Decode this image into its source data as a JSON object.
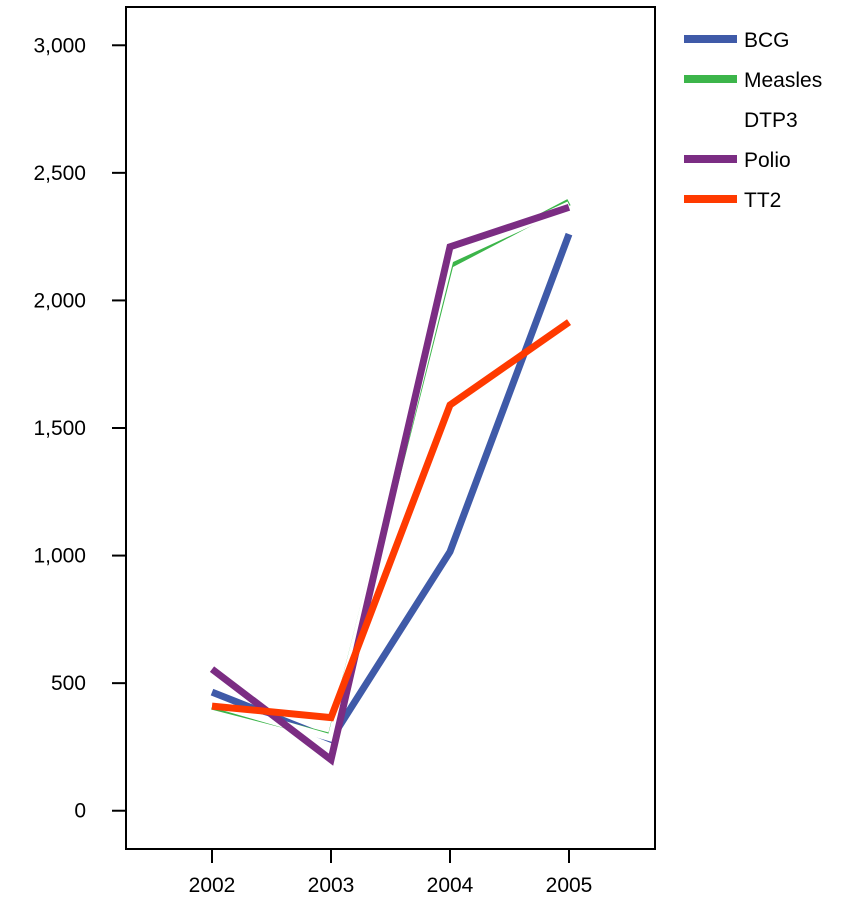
{
  "chart_data": {
    "type": "line",
    "title": "",
    "xlabel": "",
    "ylabel": "",
    "x": [
      "2002",
      "2003",
      "2004",
      "2005"
    ],
    "ylim": [
      -150,
      3150
    ],
    "y_ticks": [
      0,
      500,
      1000,
      1500,
      2000,
      2500,
      3000
    ],
    "y_tick_labels": [
      "0",
      "500",
      "1,000",
      "1,500",
      "2,000",
      "2,500",
      "3,000"
    ],
    "grid": false,
    "legend_position": "top-right (outside plot)",
    "series": [
      {
        "name": "BCG",
        "color": "#3f5aa8",
        "values": [
          465,
          280,
          1015,
          2260
        ]
      },
      {
        "name": "Measles",
        "color": "#3cb54a",
        "values": [
          410,
          290,
          2140,
          2385
        ]
      },
      {
        "name": "DTP3",
        "color": "#ffffff",
        "values": [
          420,
          285,
          2160,
          2375
        ]
      },
      {
        "name": "Polio",
        "color": "#7b2d83",
        "values": [
          555,
          200,
          2210,
          2365
        ]
      },
      {
        "name": "TT2",
        "color": "#ff3a00",
        "values": [
          410,
          365,
          1590,
          1915
        ]
      }
    ]
  }
}
